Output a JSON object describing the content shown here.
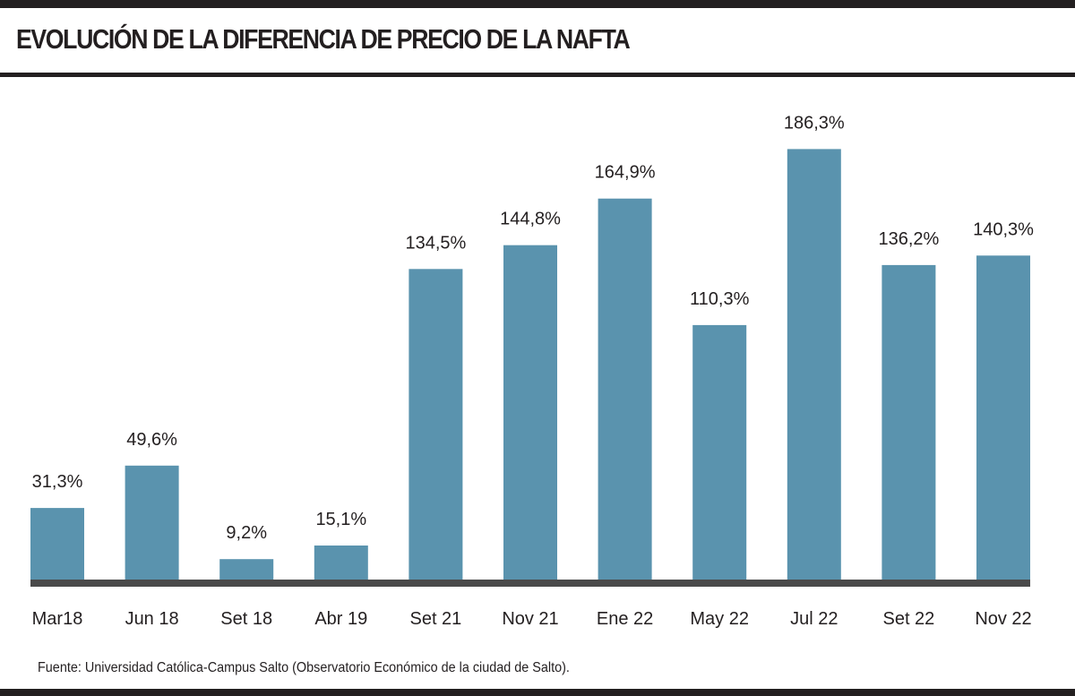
{
  "header": {
    "title": "EVOLUCIÓN DE LA DIFERENCIA DE PRECIO DE LA NAFTA"
  },
  "footer": {
    "source": "Fuente: Universidad Católica-Campus Salto (Observatorio Económico de la ciudad de Salto)."
  },
  "colors": {
    "bar": "#5a93ae",
    "baseline": "#4a4a4a",
    "text": "#231f20"
  },
  "chart_data": {
    "type": "bar",
    "title": "EVOLUCIÓN DE LA DIFERENCIA DE PRECIO DE LA NAFTA",
    "xlabel": "",
    "ylabel": "",
    "grid": false,
    "ylim": [
      0,
      200
    ],
    "categories": [
      "Mar18",
      "Jun 18",
      "Set 18",
      "Abr 19",
      "Set 21",
      "Nov 21",
      "Ene 22",
      "May 22",
      "Jul 22",
      "Set 22",
      "Nov 22"
    ],
    "values": [
      31.3,
      49.6,
      9.2,
      15.1,
      134.5,
      144.8,
      164.9,
      110.3,
      186.3,
      136.2,
      140.3
    ],
    "value_labels": [
      "31,3%",
      "49,6%",
      "9,2%",
      "15,1%",
      "134,5%",
      "144,8%",
      "164,9%",
      "110,3%",
      "186,3%",
      "136,2%",
      "140,3%"
    ]
  }
}
